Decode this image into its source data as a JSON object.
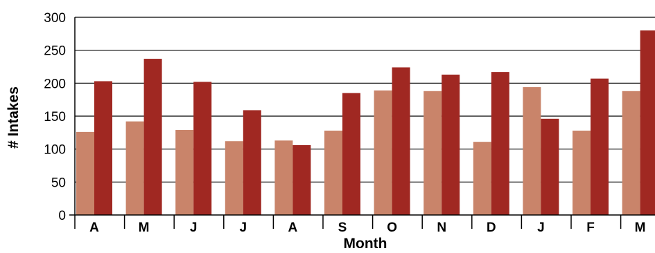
{
  "chart_data": {
    "type": "bar",
    "title": "",
    "xlabel": "Month",
    "ylabel": "# Intakes",
    "ylim": [
      0,
      300
    ],
    "yticks": [
      0,
      50,
      100,
      150,
      200,
      250,
      300
    ],
    "ytick_labels": [
      "0",
      "50",
      "100",
      "150",
      "200",
      "250",
      "300"
    ],
    "grid": true,
    "categories": [
      "A",
      "M",
      "J",
      "J",
      "A",
      "S",
      "O",
      "N",
      "D",
      "J",
      "F",
      "M"
    ],
    "series": [
      {
        "color": "#c9846a",
        "values": [
          126,
          142,
          129,
          112,
          113,
          128,
          189,
          188,
          111,
          194,
          128,
          188
        ]
      },
      {
        "color": "#a02822",
        "values": [
          203,
          237,
          202,
          159,
          106,
          185,
          224,
          213,
          217,
          146,
          207,
          280
        ]
      }
    ]
  }
}
